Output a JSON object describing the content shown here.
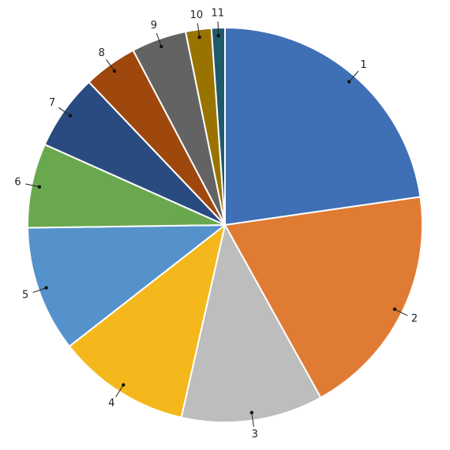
{
  "chart_data": {
    "type": "pie",
    "categories": [
      "1",
      "2",
      "3",
      "4",
      "5",
      "6",
      "7",
      "8",
      "9",
      "10",
      "11"
    ],
    "values": [
      22.7,
      19.2,
      11.6,
      10.9,
      10.3,
      6.9,
      6.2,
      4.4,
      4.5,
      2.1,
      1.1
    ],
    "colors": [
      "#3f6fb5",
      "#e07b34",
      "#bdbdbd",
      "#f4b81c",
      "#5592cc",
      "#6aa84f",
      "#2a4b80",
      "#9e480e",
      "#636363",
      "#997300",
      "#1f5a6b"
    ]
  }
}
